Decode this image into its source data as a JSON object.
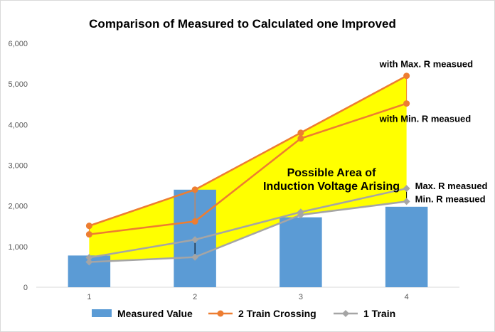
{
  "chart_data": {
    "type": "bar",
    "title": "Comparison of Measured to Calculated one Improved",
    "categories": [
      "1",
      "2",
      "3",
      "4"
    ],
    "ylim": [
      0,
      6000
    ],
    "yticks": [
      "0",
      "1,000",
      "2,000",
      "3,000",
      "4,000",
      "5,000",
      "6,000"
    ],
    "ytick_values": [
      0,
      1000,
      2000,
      3000,
      4000,
      5000,
      6000
    ],
    "grid": false,
    "legend_position": "bottom",
    "series": [
      {
        "name": "Measured Value",
        "type": "bar",
        "color": "#5b9bd5",
        "values": [
          780,
          2400,
          1720,
          1980
        ]
      },
      {
        "name": "2 Train Crossing",
        "type": "line",
        "color": "#ed7d31",
        "marker": "circle",
        "lines": [
          {
            "values": [
              1510,
              2400,
              3800,
              5200
            ]
          },
          {
            "values": [
              1300,
              1620,
              3660,
              4520
            ]
          }
        ]
      },
      {
        "name": "1 Train",
        "type": "line",
        "color": "#a5a5a5",
        "marker": "diamond",
        "lines": [
          {
            "values": [
              730,
              1170,
              1850,
              2430
            ]
          },
          {
            "values": [
              620,
              740,
              1780,
              2110
            ]
          }
        ]
      }
    ],
    "shaded_area": {
      "color": "#ffff00",
      "label_lines": [
        "Possible Area of",
        "Induction Voltage Arising"
      ]
    },
    "annotations": [
      {
        "text": "with Max. R measued",
        "x": "4",
        "y": 5200
      },
      {
        "text": "with Min. R measued",
        "x": "4",
        "y": 4520
      },
      {
        "text": "Max. R measued",
        "x": "4",
        "y": 2430
      },
      {
        "text": "Min. R measued",
        "x": "4",
        "y": 2110
      }
    ]
  }
}
